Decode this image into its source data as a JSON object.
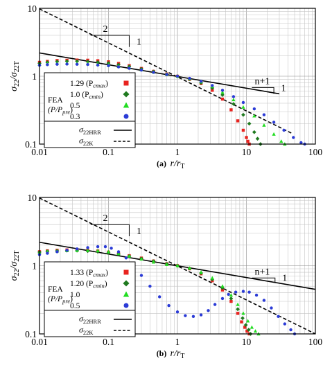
{
  "chart_data": [
    {
      "type": "scatter",
      "panel_label": "(a)",
      "xlabel": "r/r",
      "xlabel_sub": "T",
      "ylabel": "σ",
      "ylabel_sub1": "22",
      "ylabel_mid": "/σ",
      "ylabel_sub2": "22T",
      "xscale": "log",
      "yscale": "log",
      "xlim": [
        0.01,
        100
      ],
      "ylim": [
        0.1,
        10
      ],
      "xticks": [
        "0.01",
        "0.1",
        "1",
        "10",
        "100"
      ],
      "yticks": [
        "0.1",
        "1",
        "10"
      ],
      "grid": true,
      "legend_position": "lower-left",
      "legend": {
        "group_label": "FEA",
        "group_label2": "(P/P",
        "group_label2_sub": "pre",
        "group_label2_end": ")",
        "hrr_label": "σ",
        "hrr_sub": "22HRR",
        "k_label": "σ",
        "k_sub": "22K"
      },
      "series": [
        {
          "name": "1.29 (P",
          "name_sub": "cmax",
          "name_end": ")",
          "marker": "square",
          "color": "#e8231f",
          "x": [
            0.01,
            0.013,
            0.018,
            0.025,
            0.035,
            0.05,
            0.07,
            0.1,
            0.14,
            0.2,
            0.3,
            0.45,
            0.7,
            1.0,
            1.5,
            2.2,
            3.2,
            4.5,
            6.0,
            7.5,
            9.0,
            10.0,
            10.5,
            11.0
          ],
          "y": [
            1.6,
            1.65,
            1.7,
            1.72,
            1.73,
            1.72,
            1.69,
            1.63,
            1.54,
            1.43,
            1.3,
            1.18,
            1.08,
            1.0,
            0.9,
            0.78,
            0.62,
            0.46,
            0.32,
            0.22,
            0.16,
            0.125,
            0.11,
            0.1
          ]
        },
        {
          "name": "1.0 (P",
          "name_sub": "cmin",
          "name_end": ")",
          "marker": "diamond",
          "color": "#1f7a1f",
          "x": [
            0.01,
            0.013,
            0.018,
            0.025,
            0.035,
            0.05,
            0.07,
            0.1,
            0.14,
            0.2,
            0.3,
            0.45,
            0.7,
            1.0,
            1.5,
            2.2,
            3.2,
            4.5,
            6.5,
            9.0,
            11.0,
            13.0,
            14.5,
            16.0
          ],
          "y": [
            1.55,
            1.6,
            1.64,
            1.66,
            1.66,
            1.64,
            1.61,
            1.56,
            1.48,
            1.39,
            1.28,
            1.17,
            1.07,
            1.0,
            0.91,
            0.8,
            0.67,
            0.53,
            0.39,
            0.27,
            0.2,
            0.15,
            0.12,
            0.1
          ]
        },
        {
          "name": "0.5",
          "marker": "triangle",
          "color": "#22dd22",
          "x": [
            0.01,
            0.013,
            0.018,
            0.025,
            0.035,
            0.05,
            0.07,
            0.1,
            0.14,
            0.2,
            0.3,
            0.45,
            0.7,
            1.0,
            1.5,
            2.2,
            3.2,
            4.5,
            6.5,
            9.0,
            13.0,
            18.0,
            25.0,
            32.0,
            36.0
          ],
          "y": [
            1.5,
            1.53,
            1.55,
            1.56,
            1.55,
            1.53,
            1.5,
            1.46,
            1.4,
            1.33,
            1.24,
            1.15,
            1.06,
            1.0,
            0.92,
            0.83,
            0.71,
            0.58,
            0.45,
            0.35,
            0.26,
            0.19,
            0.14,
            0.11,
            0.1
          ]
        },
        {
          "name": "0.3",
          "marker": "circle",
          "color": "#2b3bd6",
          "x": [
            0.01,
            0.013,
            0.018,
            0.025,
            0.035,
            0.05,
            0.07,
            0.1,
            0.14,
            0.2,
            0.3,
            0.45,
            0.7,
            1.0,
            1.5,
            2.2,
            3.2,
            4.5,
            6.5,
            9.0,
            13.0,
            18.0,
            25.0,
            35.0,
            48.0,
            62.0,
            70.0
          ],
          "y": [
            1.45,
            1.48,
            1.5,
            1.51,
            1.5,
            1.49,
            1.46,
            1.43,
            1.37,
            1.31,
            1.23,
            1.14,
            1.06,
            1.0,
            0.93,
            0.84,
            0.73,
            0.62,
            0.5,
            0.41,
            0.33,
            0.27,
            0.21,
            0.16,
            0.125,
            0.105,
            0.1
          ]
        }
      ],
      "reference_lines": [
        {
          "name": "σ22HRR",
          "style": "solid",
          "x": [
            0.01,
            30
          ],
          "y": [
            2.2,
            0.55
          ]
        },
        {
          "name": "σ22K",
          "style": "dashed",
          "x": [
            0.01,
            45
          ],
          "y": [
            9.8,
            0.145
          ]
        }
      ],
      "annotations": [
        {
          "text": "2",
          "kind": "slope-triangle-K"
        },
        {
          "text": "1",
          "kind": "slope-triangle-K"
        },
        {
          "text": "n+1",
          "kind": "slope-triangle-HRR"
        },
        {
          "text": "1",
          "kind": "slope-triangle-HRR"
        }
      ]
    },
    {
      "type": "scatter",
      "panel_label": "(b)",
      "xlabel": "r/r",
      "xlabel_sub": "T",
      "ylabel": "σ",
      "ylabel_sub1": "22",
      "ylabel_mid": "/σ",
      "ylabel_sub2": "22T",
      "xscale": "log",
      "yscale": "log",
      "xlim": [
        0.01,
        100
      ],
      "ylim": [
        0.1,
        10
      ],
      "xticks": [
        "0.01",
        "0.1",
        "1",
        "10",
        "100"
      ],
      "yticks": [
        "0.1",
        "1",
        "10"
      ],
      "grid": true,
      "legend_position": "lower-left",
      "legend": {
        "group_label": "FEA",
        "group_label2": "(P/P",
        "group_label2_sub": "pre",
        "group_label2_end": ")",
        "hrr_label": "σ",
        "hrr_sub": "22HRR",
        "k_label": "σ",
        "k_sub": "22K"
      },
      "series": [
        {
          "name": "1.33 (P",
          "name_sub": "cmax",
          "name_end": ")",
          "marker": "square",
          "color": "#e8231f",
          "x": [
            0.01,
            0.013,
            0.018,
            0.025,
            0.035,
            0.05,
            0.07,
            0.1,
            0.14,
            0.2,
            0.3,
            0.45,
            0.7,
            1.0,
            1.5,
            2.2,
            3.2,
            4.5,
            6.0,
            7.5,
            8.5,
            9.5,
            10.2,
            11.0
          ],
          "y": [
            1.6,
            1.65,
            1.68,
            1.7,
            1.7,
            1.68,
            1.64,
            1.58,
            1.5,
            1.4,
            1.29,
            1.17,
            1.07,
            1.0,
            0.9,
            0.76,
            0.6,
            0.44,
            0.3,
            0.2,
            0.15,
            0.125,
            0.11,
            0.1
          ]
        },
        {
          "name": "1.20 (P",
          "name_sub": "cmin",
          "name_end": ")",
          "marker": "diamond",
          "color": "#1f7a1f",
          "x": [
            0.01,
            0.013,
            0.018,
            0.025,
            0.035,
            0.05,
            0.07,
            0.1,
            0.14,
            0.2,
            0.3,
            0.45,
            0.7,
            1.0,
            1.5,
            2.2,
            3.2,
            4.5,
            6.0,
            7.5,
            8.8,
            9.8,
            10.8,
            11.5
          ],
          "y": [
            1.58,
            1.62,
            1.65,
            1.66,
            1.66,
            1.64,
            1.6,
            1.55,
            1.48,
            1.38,
            1.27,
            1.16,
            1.06,
            1.0,
            0.91,
            0.78,
            0.63,
            0.47,
            0.33,
            0.23,
            0.17,
            0.135,
            0.115,
            0.1
          ]
        },
        {
          "name": "1.0",
          "marker": "triangle",
          "color": "#22dd22",
          "x": [
            0.01,
            0.013,
            0.018,
            0.025,
            0.035,
            0.05,
            0.07,
            0.1,
            0.14,
            0.2,
            0.3,
            0.45,
            0.7,
            1.0,
            1.5,
            2.2,
            3.2,
            4.5,
            6.0,
            7.5,
            9.0,
            10.5,
            12.0,
            13.5,
            15.0
          ],
          "y": [
            1.55,
            1.6,
            1.64,
            1.66,
            1.68,
            1.68,
            1.66,
            1.6,
            1.5,
            1.38,
            1.25,
            1.13,
            1.04,
            1.0,
            0.92,
            0.8,
            0.66,
            0.5,
            0.37,
            0.27,
            0.2,
            0.155,
            0.125,
            0.11,
            0.1
          ]
        },
        {
          "name": "0.5",
          "marker": "circle",
          "color": "#2b3bd6",
          "x": [
            0.01,
            0.013,
            0.018,
            0.025,
            0.035,
            0.05,
            0.07,
            0.09,
            0.11,
            0.14,
            0.18,
            0.23,
            0.3,
            0.4,
            0.55,
            0.75,
            1.0,
            1.3,
            1.7,
            2.2,
            2.8,
            3.5,
            4.5,
            5.5,
            7.0,
            9.0,
            11.0,
            14.0,
            18.0,
            23.0,
            29.0,
            36.0,
            44.0,
            50.0
          ],
          "y": [
            1.45,
            1.52,
            1.6,
            1.68,
            1.76,
            1.84,
            1.9,
            1.9,
            1.8,
            1.6,
            1.3,
            1.0,
            0.72,
            0.5,
            0.35,
            0.26,
            0.21,
            0.185,
            0.18,
            0.19,
            0.22,
            0.27,
            0.33,
            0.38,
            0.41,
            0.42,
            0.41,
            0.37,
            0.31,
            0.24,
            0.18,
            0.14,
            0.115,
            0.1
          ]
        }
      ],
      "reference_lines": [
        {
          "name": "σ22HRR",
          "style": "solid",
          "x": [
            0.01,
            100
          ],
          "y": [
            2.2,
            0.45
          ]
        },
        {
          "name": "σ22K",
          "style": "dashed",
          "x": [
            0.01,
            100
          ],
          "y": [
            9.8,
            0.1
          ]
        }
      ],
      "annotations": [
        {
          "text": "2",
          "kind": "slope-triangle-K"
        },
        {
          "text": "1",
          "kind": "slope-triangle-K"
        },
        {
          "text": "n+1",
          "kind": "slope-triangle-HRR"
        },
        {
          "text": "1",
          "kind": "slope-triangle-HRR"
        }
      ]
    }
  ]
}
